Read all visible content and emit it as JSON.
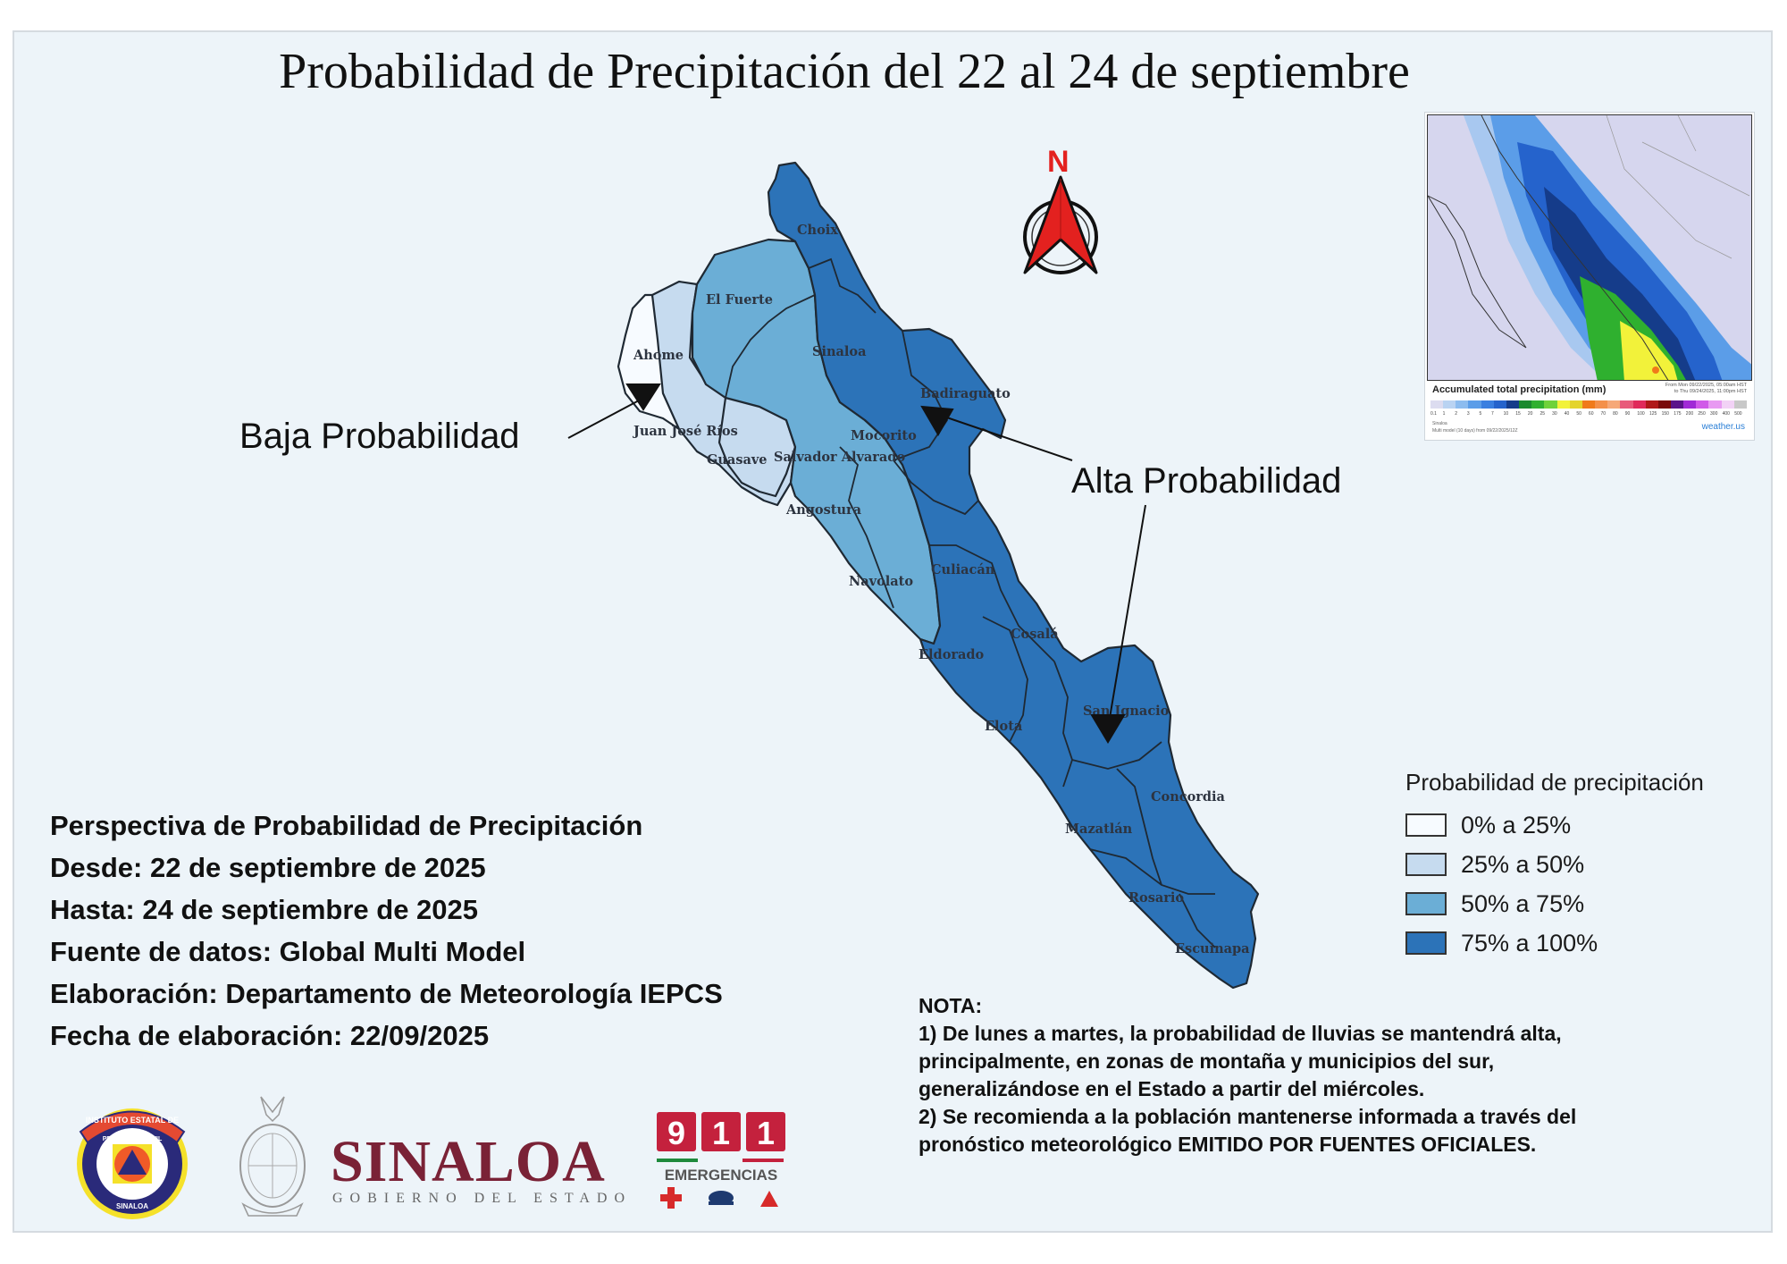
{
  "title": "Probabilidad de Precipitación del 22 al 24 de septiembre",
  "annotations": {
    "low": "Baja Probabilidad",
    "high": "Alta Probabilidad"
  },
  "north_arrow": {
    "label": "N",
    "color": "#e3211f"
  },
  "legend": {
    "title": "Probabilidad de precipitación",
    "items": [
      {
        "label": "0% a 25%",
        "color": "#f7fbff"
      },
      {
        "label": "25% a 50%",
        "color": "#c6dbef"
      },
      {
        "label": "50% a 75%",
        "color": "#6baed6"
      },
      {
        "label": "75% a 100%",
        "color": "#2c73b8"
      }
    ]
  },
  "municipalities": [
    {
      "name": "Choix",
      "class": "75% a 100%"
    },
    {
      "name": "El Fuerte",
      "class": "50% a 75%"
    },
    {
      "name": "Ahome",
      "class": "0% a 25%"
    },
    {
      "name": "Sinaloa",
      "class": "75% a 100%"
    },
    {
      "name": "Badiraguato",
      "class": "75% a 100%"
    },
    {
      "name": "Juan José Ríos",
      "class": "25% a 50%"
    },
    {
      "name": "Guasave",
      "class": "25% a 50%"
    },
    {
      "name": "Salvador Alvarado",
      "class": "50% a 75%"
    },
    {
      "name": "Mocorito",
      "class": "75% a 100%"
    },
    {
      "name": "Angostura",
      "class": "50% a 75%"
    },
    {
      "name": "Navolato",
      "class": "50% a 75%"
    },
    {
      "name": "Culiacán",
      "class": "75% a 100%"
    },
    {
      "name": "Cosalá",
      "class": "75% a 100%"
    },
    {
      "name": "Eldorado",
      "class": "75% a 100%"
    },
    {
      "name": "Elota",
      "class": "75% a 100%"
    },
    {
      "name": "San Ignacio",
      "class": "75% a 100%"
    },
    {
      "name": "Concordia",
      "class": "75% a 100%"
    },
    {
      "name": "Mazatlán",
      "class": "75% a 100%"
    },
    {
      "name": "Rosario",
      "class": "75% a 100%"
    },
    {
      "name": "Escuinapa",
      "class": "75% a 100%"
    }
  ],
  "inset": {
    "title": "Accumulated total precipitation (mm)",
    "range_from": "From Mon 09/22/2025, 05:00am HST",
    "range_to": "to Thu 09/24/2025, 11:00pm HST",
    "ticks": [
      "0.1",
      "1",
      "2",
      "3",
      "5",
      "7",
      "10",
      "15",
      "20",
      "25",
      "30",
      "40",
      "50",
      "60",
      "70",
      "80",
      "90",
      "100",
      "125",
      "150",
      "175",
      "200",
      "250",
      "300",
      "400",
      "500"
    ],
    "colors": [
      "#dcdcf0",
      "#b9d3f2",
      "#8cbcef",
      "#5b9de8",
      "#3a7fe0",
      "#2563cc",
      "#153c8a",
      "#1a8a2e",
      "#2fb02f",
      "#6fd23a",
      "#f2f23a",
      "#e4d42c",
      "#f07a1a",
      "#f4904a",
      "#f6a878",
      "#e85a7a",
      "#e02a5a",
      "#b01818",
      "#7a0a0a",
      "#5a148a",
      "#a02ad6",
      "#d05ae8",
      "#e89af2",
      "#f2d2f6",
      "#c8c8c8"
    ],
    "footer_region": "Sinaloa",
    "footer_model": "Multi model (10 days) from 09/22/2025/12Z",
    "brand": "weather.us"
  },
  "info": {
    "line1": "Perspectiva de Probabilidad de Precipitación",
    "line2": "Desde: 22 de septiembre de 2025",
    "line3": "Hasta: 24 de septiembre de 2025",
    "line4": "Fuente de datos: Global Multi Model",
    "line5": "Elaboración: Departamento de Meteorología IEPCS",
    "line6": "Fecha de elaboración: 22/09/2025"
  },
  "nota": {
    "heading": "NOTA:",
    "line1": "1) De lunes a martes, la probabilidad de lluvias se mantendrá alta,",
    "line2": "principalmente, en zonas de montaña y municipios del sur,",
    "line3": "generalizándose en el Estado a partir del miércoles.",
    "line4": "2) Se recomienda a la población mantenerse informada a través del",
    "line5": "pronóstico meteorológico EMITIDO POR FUENTES OFICIALES."
  },
  "logos": {
    "proteccion_civil": {
      "top": "INSTITUTO ESTATAL DE",
      "middle": "PROTECCION CIVIL",
      "bottom": "SINALOA"
    },
    "gobierno": {
      "name": "SINALOA",
      "sub": "GOBIERNO DEL ESTADO"
    },
    "emergencias": {
      "digits": [
        "9",
        "1",
        "1"
      ],
      "label": "EMERGENCIAS"
    }
  }
}
